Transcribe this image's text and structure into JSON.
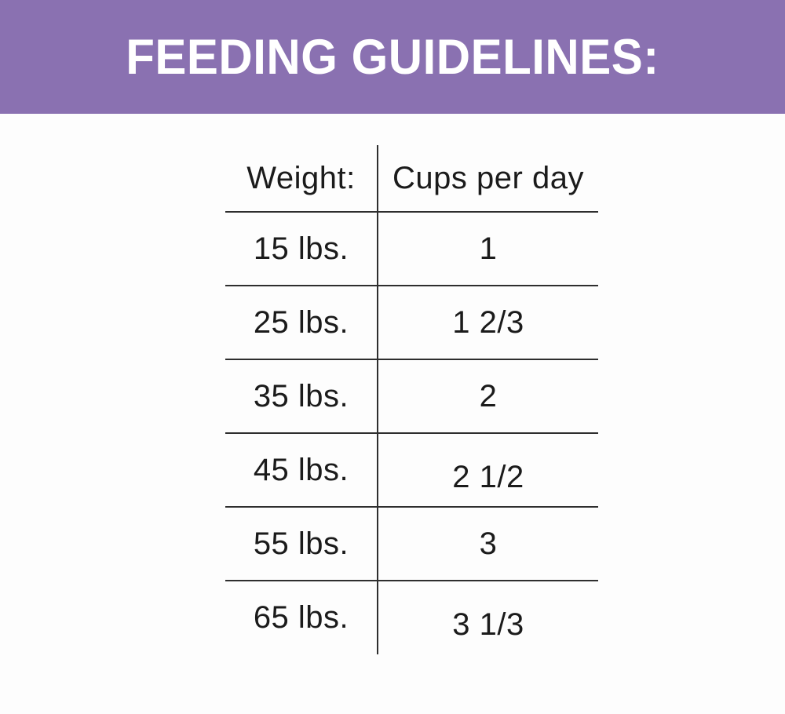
{
  "banner": {
    "title": "FEEDING GUIDELINES:",
    "background_color": "#8a71b1",
    "text_color": "#ffffff"
  },
  "chart_data": {
    "type": "table",
    "title": "FEEDING GUIDELINES:",
    "columns": [
      "Weight:",
      "Cups per day"
    ],
    "rows": [
      [
        "15 lbs.",
        "1"
      ],
      [
        "25 lbs.",
        "1 2/3"
      ],
      [
        "35 lbs.",
        "2"
      ],
      [
        "45 lbs.",
        "2 1/2"
      ],
      [
        "55 lbs.",
        "3"
      ],
      [
        "65 lbs.",
        "3 1/3"
      ]
    ],
    "weights_lbs": [
      15,
      25,
      35,
      45,
      55,
      65
    ],
    "cups_per_day": [
      1,
      1.667,
      2,
      2.5,
      3,
      3.333
    ]
  },
  "colors": {
    "rule_line": "#2e2e2e",
    "table_text": "#1b1b1b",
    "page_background": "#fdfdfd"
  }
}
